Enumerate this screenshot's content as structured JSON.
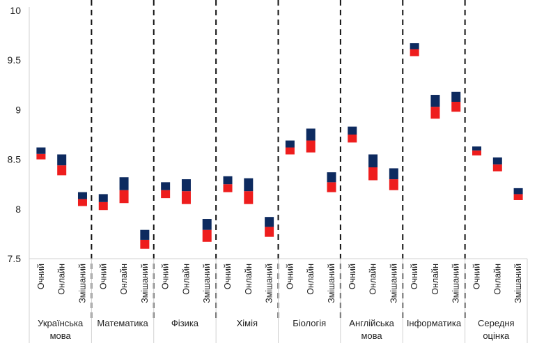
{
  "chart_data": {
    "type": "bar",
    "title": "",
    "xlabel": "",
    "ylabel": "",
    "ylim": [
      7.5,
      10
    ],
    "yticks": [
      "7.5",
      "8",
      "8.5",
      "9",
      "9.5",
      "10"
    ],
    "grid": false,
    "legend": "none",
    "colors": {
      "upper": "#0d2a5f",
      "lower": "#ee1d1d",
      "divider": "#111111"
    },
    "groups": [
      {
        "label": "Українська мова",
        "label_lines": [
          "Українська",
          "мова"
        ],
        "bars": [
          {
            "label": "Очний",
            "low": 8.5,
            "mid": 8.555,
            "high": 8.62
          },
          {
            "label": "Онлайн",
            "low": 8.34,
            "mid": 8.44,
            "high": 8.55
          },
          {
            "label": "Змішаний",
            "low": 8.03,
            "mid": 8.1,
            "high": 8.17
          }
        ]
      },
      {
        "label": "Математика",
        "label_lines": [
          "Математика"
        ],
        "bars": [
          {
            "label": "Очний",
            "low": 7.99,
            "mid": 8.07,
            "high": 8.15
          },
          {
            "label": "Онлайн",
            "low": 8.06,
            "mid": 8.19,
            "high": 8.32
          },
          {
            "label": "Змішаний",
            "low": 7.6,
            "mid": 7.69,
            "high": 7.79
          }
        ]
      },
      {
        "label": "Фізика",
        "label_lines": [
          "Фізика"
        ],
        "bars": [
          {
            "label": "Очний",
            "low": 8.11,
            "mid": 8.19,
            "high": 8.27
          },
          {
            "label": "Онлайн",
            "low": 8.05,
            "mid": 8.18,
            "high": 8.3
          },
          {
            "label": "Змішаний",
            "low": 7.67,
            "mid": 7.79,
            "high": 7.9
          }
        ]
      },
      {
        "label": "Хімія",
        "label_lines": [
          "Хімія"
        ],
        "bars": [
          {
            "label": "Очний",
            "low": 8.17,
            "mid": 8.25,
            "high": 8.33
          },
          {
            "label": "Онлайн",
            "low": 8.05,
            "mid": 8.18,
            "high": 8.31
          },
          {
            "label": "Змішаний",
            "low": 7.72,
            "mid": 7.82,
            "high": 7.92
          }
        ]
      },
      {
        "label": "Біологія",
        "label_lines": [
          "Біологія"
        ],
        "bars": [
          {
            "label": "Очний",
            "low": 8.55,
            "mid": 8.62,
            "high": 8.69
          },
          {
            "label": "Онлайн",
            "low": 8.57,
            "mid": 8.69,
            "high": 8.81
          },
          {
            "label": "Змішаний",
            "low": 8.17,
            "mid": 8.27,
            "high": 8.37
          }
        ]
      },
      {
        "label": "Англійська мова",
        "label_lines": [
          "Англійська",
          "мова"
        ],
        "bars": [
          {
            "label": "Очний",
            "low": 8.67,
            "mid": 8.75,
            "high": 8.83
          },
          {
            "label": "Онлайн",
            "low": 8.29,
            "mid": 8.42,
            "high": 8.55
          },
          {
            "label": "Змішаний",
            "low": 8.19,
            "mid": 8.3,
            "high": 8.41
          }
        ]
      },
      {
        "label": "Інформатика",
        "label_lines": [
          "Інформатика"
        ],
        "bars": [
          {
            "label": "Очний",
            "low": 9.54,
            "mid": 9.61,
            "high": 9.67
          },
          {
            "label": "Онлайн",
            "low": 8.91,
            "mid": 9.03,
            "high": 9.15
          },
          {
            "label": "Змішаний",
            "low": 8.98,
            "mid": 9.08,
            "high": 9.18
          }
        ]
      },
      {
        "label": "Середня оцінка",
        "label_lines": [
          "Середня",
          "оцінка"
        ],
        "bars": [
          {
            "label": "Очний",
            "low": 8.54,
            "mid": 8.59,
            "high": 8.63
          },
          {
            "label": "Онлайн",
            "low": 8.38,
            "mid": 8.45,
            "high": 8.52
          },
          {
            "label": "Змішаний",
            "low": 8.09,
            "mid": 8.15,
            "high": 8.21
          }
        ]
      }
    ]
  }
}
